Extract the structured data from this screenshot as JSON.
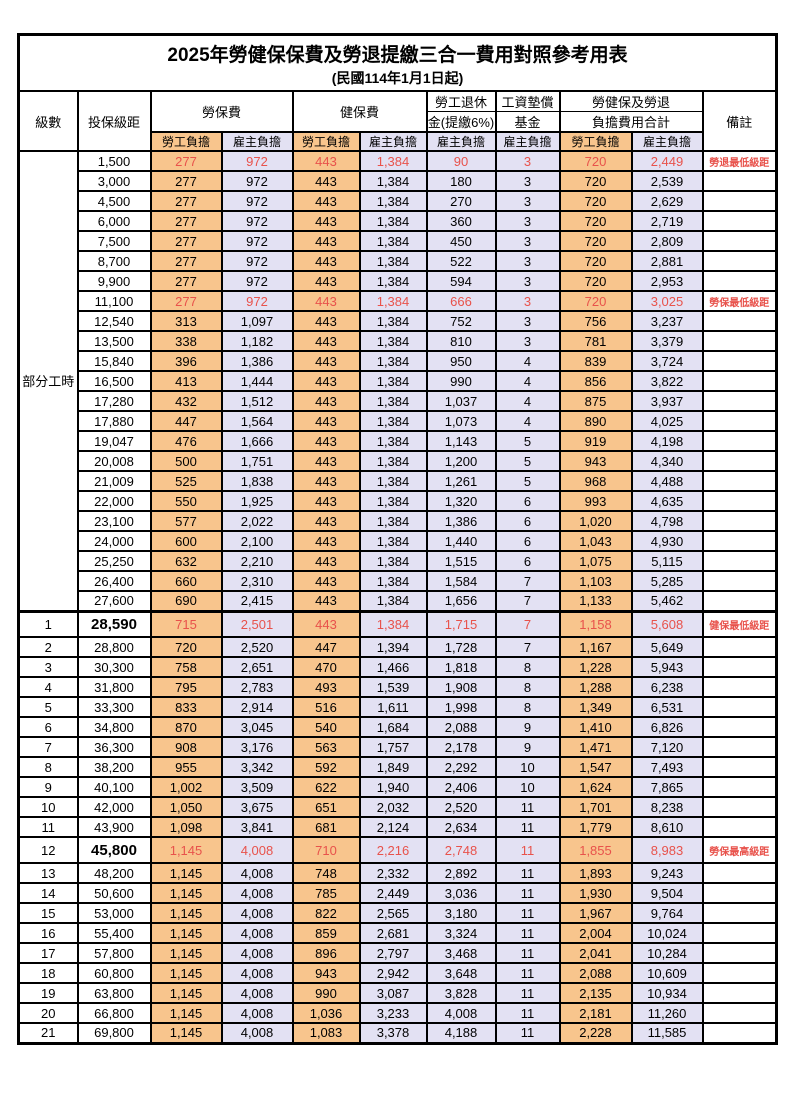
{
  "title": "2025年勞健保保費及勞退提繳三合一費用對照參考用表",
  "subtitle": "(民國114年1月1日起)",
  "colors": {
    "employee_bg": "#f8c58d",
    "employer_bg": "#e3e1f3",
    "highlight_red": "#e8524b",
    "border": "#000000"
  },
  "columns": {
    "level": "級數",
    "bracket": "投保級距",
    "labor_insurance": "勞保費",
    "health_insurance": "健保費",
    "pension_line1": "勞工退休",
    "pension_line2": "金(提繳6%)",
    "wage_fund_line1": "工資墊償",
    "wage_fund_line2": "基金",
    "total_line1": "勞健保及勞退",
    "total_line2": "負擔費用合計",
    "note": "備註",
    "employee": "勞工負擔",
    "employer": "雇主負擔"
  },
  "part_time": {
    "label": "部分工時",
    "rowspan": 23
  },
  "rows": [
    {
      "lv": "",
      "b": "1,500",
      "v": [
        "277",
        "972",
        "443",
        "1,384",
        "90",
        "3",
        "720",
        "2,449"
      ],
      "n": "勞退最低級距",
      "red": true,
      "big": false
    },
    {
      "lv": "",
      "b": "3,000",
      "v": [
        "277",
        "972",
        "443",
        "1,384",
        "180",
        "3",
        "720",
        "2,539"
      ],
      "n": "",
      "red": false,
      "big": false
    },
    {
      "lv": "",
      "b": "4,500",
      "v": [
        "277",
        "972",
        "443",
        "1,384",
        "270",
        "3",
        "720",
        "2,629"
      ],
      "n": "",
      "red": false,
      "big": false
    },
    {
      "lv": "",
      "b": "6,000",
      "v": [
        "277",
        "972",
        "443",
        "1,384",
        "360",
        "3",
        "720",
        "2,719"
      ],
      "n": "",
      "red": false,
      "big": false
    },
    {
      "lv": "",
      "b": "7,500",
      "v": [
        "277",
        "972",
        "443",
        "1,384",
        "450",
        "3",
        "720",
        "2,809"
      ],
      "n": "",
      "red": false,
      "big": false
    },
    {
      "lv": "",
      "b": "8,700",
      "v": [
        "277",
        "972",
        "443",
        "1,384",
        "522",
        "3",
        "720",
        "2,881"
      ],
      "n": "",
      "red": false,
      "big": false
    },
    {
      "lv": "",
      "b": "9,900",
      "v": [
        "277",
        "972",
        "443",
        "1,384",
        "594",
        "3",
        "720",
        "2,953"
      ],
      "n": "",
      "red": false,
      "big": false
    },
    {
      "lv": "",
      "b": "11,100",
      "v": [
        "277",
        "972",
        "443",
        "1,384",
        "666",
        "3",
        "720",
        "3,025"
      ],
      "n": "勞保最低級距",
      "red": true,
      "big": false
    },
    {
      "lv": "",
      "b": "12,540",
      "v": [
        "313",
        "1,097",
        "443",
        "1,384",
        "752",
        "3",
        "756",
        "3,237"
      ],
      "n": "",
      "red": false,
      "big": false
    },
    {
      "lv": "",
      "b": "13,500",
      "v": [
        "338",
        "1,182",
        "443",
        "1,384",
        "810",
        "3",
        "781",
        "3,379"
      ],
      "n": "",
      "red": false,
      "big": false
    },
    {
      "lv": "",
      "b": "15,840",
      "v": [
        "396",
        "1,386",
        "443",
        "1,384",
        "950",
        "4",
        "839",
        "3,724"
      ],
      "n": "",
      "red": false,
      "big": false
    },
    {
      "lv": "",
      "b": "16,500",
      "v": [
        "413",
        "1,444",
        "443",
        "1,384",
        "990",
        "4",
        "856",
        "3,822"
      ],
      "n": "",
      "red": false,
      "big": false
    },
    {
      "lv": "",
      "b": "17,280",
      "v": [
        "432",
        "1,512",
        "443",
        "1,384",
        "1,037",
        "4",
        "875",
        "3,937"
      ],
      "n": "",
      "red": false,
      "big": false
    },
    {
      "lv": "",
      "b": "17,880",
      "v": [
        "447",
        "1,564",
        "443",
        "1,384",
        "1,073",
        "4",
        "890",
        "4,025"
      ],
      "n": "",
      "red": false,
      "big": false
    },
    {
      "lv": "",
      "b": "19,047",
      "v": [
        "476",
        "1,666",
        "443",
        "1,384",
        "1,143",
        "5",
        "919",
        "4,198"
      ],
      "n": "",
      "red": false,
      "big": false
    },
    {
      "lv": "",
      "b": "20,008",
      "v": [
        "500",
        "1,751",
        "443",
        "1,384",
        "1,200",
        "5",
        "943",
        "4,340"
      ],
      "n": "",
      "red": false,
      "big": false
    },
    {
      "lv": "",
      "b": "21,009",
      "v": [
        "525",
        "1,838",
        "443",
        "1,384",
        "1,261",
        "5",
        "968",
        "4,488"
      ],
      "n": "",
      "red": false,
      "big": false
    },
    {
      "lv": "",
      "b": "22,000",
      "v": [
        "550",
        "1,925",
        "443",
        "1,384",
        "1,320",
        "6",
        "993",
        "4,635"
      ],
      "n": "",
      "red": false,
      "big": false
    },
    {
      "lv": "",
      "b": "23,100",
      "v": [
        "577",
        "2,022",
        "443",
        "1,384",
        "1,386",
        "6",
        "1,020",
        "4,798"
      ],
      "n": "",
      "red": false,
      "big": false
    },
    {
      "lv": "",
      "b": "24,000",
      "v": [
        "600",
        "2,100",
        "443",
        "1,384",
        "1,440",
        "6",
        "1,043",
        "4,930"
      ],
      "n": "",
      "red": false,
      "big": false
    },
    {
      "lv": "",
      "b": "25,250",
      "v": [
        "632",
        "2,210",
        "443",
        "1,384",
        "1,515",
        "6",
        "1,075",
        "5,115"
      ],
      "n": "",
      "red": false,
      "big": false
    },
    {
      "lv": "",
      "b": "26,400",
      "v": [
        "660",
        "2,310",
        "443",
        "1,384",
        "1,584",
        "7",
        "1,103",
        "5,285"
      ],
      "n": "",
      "red": false,
      "big": false
    },
    {
      "lv": "",
      "b": "27,600",
      "v": [
        "690",
        "2,415",
        "443",
        "1,384",
        "1,656",
        "7",
        "1,133",
        "5,462"
      ],
      "n": "",
      "red": false,
      "big": false
    },
    {
      "lv": "1",
      "b": "28,590",
      "v": [
        "715",
        "2,501",
        "443",
        "1,384",
        "1,715",
        "7",
        "1,158",
        "5,608"
      ],
      "n": "健保最低級距",
      "red": true,
      "big": true
    },
    {
      "lv": "2",
      "b": "28,800",
      "v": [
        "720",
        "2,520",
        "447",
        "1,394",
        "1,728",
        "7",
        "1,167",
        "5,649"
      ],
      "n": "",
      "red": false,
      "big": false
    },
    {
      "lv": "3",
      "b": "30,300",
      "v": [
        "758",
        "2,651",
        "470",
        "1,466",
        "1,818",
        "8",
        "1,228",
        "5,943"
      ],
      "n": "",
      "red": false,
      "big": false
    },
    {
      "lv": "4",
      "b": "31,800",
      "v": [
        "795",
        "2,783",
        "493",
        "1,539",
        "1,908",
        "8",
        "1,288",
        "6,238"
      ],
      "n": "",
      "red": false,
      "big": false
    },
    {
      "lv": "5",
      "b": "33,300",
      "v": [
        "833",
        "2,914",
        "516",
        "1,611",
        "1,998",
        "8",
        "1,349",
        "6,531"
      ],
      "n": "",
      "red": false,
      "big": false
    },
    {
      "lv": "6",
      "b": "34,800",
      "v": [
        "870",
        "3,045",
        "540",
        "1,684",
        "2,088",
        "9",
        "1,410",
        "6,826"
      ],
      "n": "",
      "red": false,
      "big": false
    },
    {
      "lv": "7",
      "b": "36,300",
      "v": [
        "908",
        "3,176",
        "563",
        "1,757",
        "2,178",
        "9",
        "1,471",
        "7,120"
      ],
      "n": "",
      "red": false,
      "big": false
    },
    {
      "lv": "8",
      "b": "38,200",
      "v": [
        "955",
        "3,342",
        "592",
        "1,849",
        "2,292",
        "10",
        "1,547",
        "7,493"
      ],
      "n": "",
      "red": false,
      "big": false
    },
    {
      "lv": "9",
      "b": "40,100",
      "v": [
        "1,002",
        "3,509",
        "622",
        "1,940",
        "2,406",
        "10",
        "1,624",
        "7,865"
      ],
      "n": "",
      "red": false,
      "big": false
    },
    {
      "lv": "10",
      "b": "42,000",
      "v": [
        "1,050",
        "3,675",
        "651",
        "2,032",
        "2,520",
        "11",
        "1,701",
        "8,238"
      ],
      "n": "",
      "red": false,
      "big": false
    },
    {
      "lv": "11",
      "b": "43,900",
      "v": [
        "1,098",
        "3,841",
        "681",
        "2,124",
        "2,634",
        "11",
        "1,779",
        "8,610"
      ],
      "n": "",
      "red": false,
      "big": false
    },
    {
      "lv": "12",
      "b": "45,800",
      "v": [
        "1,145",
        "4,008",
        "710",
        "2,216",
        "2,748",
        "11",
        "1,855",
        "8,983"
      ],
      "n": "勞保最高級距",
      "red": true,
      "big": true
    },
    {
      "lv": "13",
      "b": "48,200",
      "v": [
        "1,145",
        "4,008",
        "748",
        "2,332",
        "2,892",
        "11",
        "1,893",
        "9,243"
      ],
      "n": "",
      "red": false,
      "big": false
    },
    {
      "lv": "14",
      "b": "50,600",
      "v": [
        "1,145",
        "4,008",
        "785",
        "2,449",
        "3,036",
        "11",
        "1,930",
        "9,504"
      ],
      "n": "",
      "red": false,
      "big": false
    },
    {
      "lv": "15",
      "b": "53,000",
      "v": [
        "1,145",
        "4,008",
        "822",
        "2,565",
        "3,180",
        "11",
        "1,967",
        "9,764"
      ],
      "n": "",
      "red": false,
      "big": false
    },
    {
      "lv": "16",
      "b": "55,400",
      "v": [
        "1,145",
        "4,008",
        "859",
        "2,681",
        "3,324",
        "11",
        "2,004",
        "10,024"
      ],
      "n": "",
      "red": false,
      "big": false
    },
    {
      "lv": "17",
      "b": "57,800",
      "v": [
        "1,145",
        "4,008",
        "896",
        "2,797",
        "3,468",
        "11",
        "2,041",
        "10,284"
      ],
      "n": "",
      "red": false,
      "big": false
    },
    {
      "lv": "18",
      "b": "60,800",
      "v": [
        "1,145",
        "4,008",
        "943",
        "2,942",
        "3,648",
        "11",
        "2,088",
        "10,609"
      ],
      "n": "",
      "red": false,
      "big": false
    },
    {
      "lv": "19",
      "b": "63,800",
      "v": [
        "1,145",
        "4,008",
        "990",
        "3,087",
        "3,828",
        "11",
        "2,135",
        "10,934"
      ],
      "n": "",
      "red": false,
      "big": false
    },
    {
      "lv": "20",
      "b": "66,800",
      "v": [
        "1,145",
        "4,008",
        "1,036",
        "3,233",
        "4,008",
        "11",
        "2,181",
        "11,260"
      ],
      "n": "",
      "red": false,
      "big": false
    },
    {
      "lv": "21",
      "b": "69,800",
      "v": [
        "1,145",
        "4,008",
        "1,083",
        "3,378",
        "4,188",
        "11",
        "2,228",
        "11,585"
      ],
      "n": "",
      "red": false,
      "big": false
    }
  ]
}
